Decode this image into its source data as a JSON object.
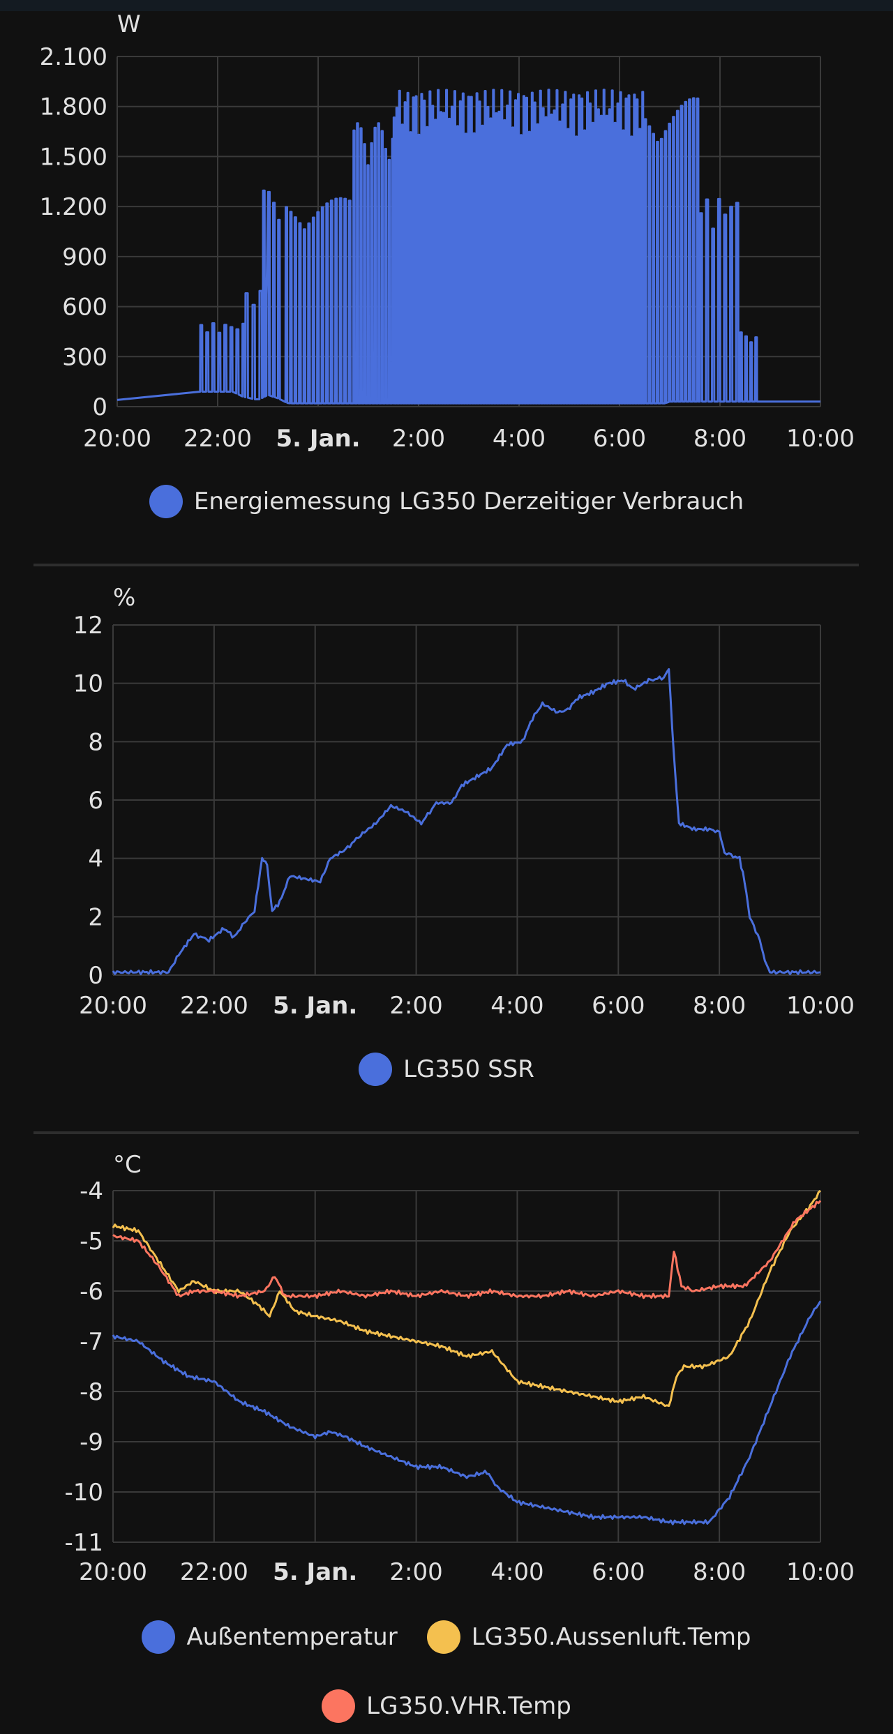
{
  "colors": {
    "blue": "#4a6fdc",
    "yellow": "#f4c04f",
    "red": "#fc7560",
    "grid": "#3a3a3a",
    "text": "#e1e1e1"
  },
  "chart_data": [
    {
      "type": "line",
      "unit": "W",
      "x_ticks": [
        "20:00",
        "22:00",
        "5. Jan.",
        "2:00",
        "4:00",
        "6:00",
        "8:00",
        "10:00"
      ],
      "x_range_hours": [
        20,
        34
      ],
      "ylim": [
        0,
        2100
      ],
      "y_ticks": [
        0,
        300,
        600,
        900,
        1200,
        1500,
        1800,
        2100
      ],
      "y_tick_labels": [
        "0",
        "300",
        "600",
        "900",
        "1.200",
        "1.500",
        "1.800",
        "2.100"
      ],
      "grid": true,
      "legend_position": "bottom",
      "series": [
        {
          "name": "Energiemessung LG350 Derzeitiger Verbrauch",
          "color": "#4a6fdc",
          "baseline_points": [
            [
              20,
              40
            ],
            [
              21.1,
              40
            ],
            [
              21.2,
              60
            ],
            [
              21.4,
              90
            ],
            [
              22.3,
              90
            ],
            [
              22.5,
              60
            ],
            [
              22.8,
              40
            ],
            [
              23.0,
              70
            ],
            [
              23.2,
              50
            ],
            [
              23.4,
              20
            ],
            [
              30.9,
              20
            ],
            [
              31.0,
              30
            ],
            [
              32.9,
              30
            ],
            [
              34,
              30
            ]
          ],
          "pulse_segments": [
            {
              "start": 21.65,
              "end": 22.55,
              "peak": 500,
              "period": 0.12
            },
            {
              "start": 22.55,
              "end": 23.05,
              "peak": 700,
              "period": 0.14
            },
            {
              "start": 22.9,
              "end": 23.25,
              "peak": 1300,
              "period": 0.1
            },
            {
              "start": 23.35,
              "end": 24.7,
              "peak": 1250,
              "period": 0.09
            },
            {
              "start": 24.7,
              "end": 25.5,
              "peak": 1700,
              "period": 0.07
            },
            {
              "start": 25.5,
              "end": 30.5,
              "peak": 1900,
              "period": 0.055
            },
            {
              "start": 30.5,
              "end": 31.6,
              "peak": 1850,
              "period": 0.08
            },
            {
              "start": 31.6,
              "end": 32.4,
              "peak": 1250,
              "period": 0.12
            },
            {
              "start": 32.4,
              "end": 32.8,
              "peak": 450,
              "period": 0.1
            }
          ]
        }
      ]
    },
    {
      "type": "line",
      "unit": "%",
      "x_ticks": [
        "20:00",
        "22:00",
        "5. Jan.",
        "2:00",
        "4:00",
        "6:00",
        "8:00",
        "10:00"
      ],
      "x_range_hours": [
        20,
        34
      ],
      "ylim": [
        0,
        12
      ],
      "y_ticks": [
        0,
        2,
        4,
        6,
        8,
        10,
        12
      ],
      "y_tick_labels": [
        "0",
        "2",
        "4",
        "6",
        "8",
        "10",
        "12"
      ],
      "grid": true,
      "legend_position": "bottom",
      "series": [
        {
          "name": "LG350 SSR",
          "color": "#4a6fdc",
          "points": [
            [
              20,
              0.1
            ],
            [
              21.1,
              0.1
            ],
            [
              21.3,
              0.7
            ],
            [
              21.6,
              1.4
            ],
            [
              21.9,
              1.2
            ],
            [
              22.2,
              1.6
            ],
            [
              22.4,
              1.3
            ],
            [
              22.6,
              1.8
            ],
            [
              22.8,
              2.2
            ],
            [
              22.95,
              4.0
            ],
            [
              23.05,
              3.8
            ],
            [
              23.15,
              2.2
            ],
            [
              23.3,
              2.5
            ],
            [
              23.5,
              3.4
            ],
            [
              23.8,
              3.3
            ],
            [
              24.1,
              3.2
            ],
            [
              24.3,
              4.0
            ],
            [
              24.6,
              4.3
            ],
            [
              24.9,
              4.8
            ],
            [
              25.2,
              5.2
            ],
            [
              25.5,
              5.8
            ],
            [
              25.8,
              5.6
            ],
            [
              26.1,
              5.2
            ],
            [
              26.4,
              5.9
            ],
            [
              26.7,
              5.9
            ],
            [
              26.9,
              6.5
            ],
            [
              27.2,
              6.8
            ],
            [
              27.5,
              7.1
            ],
            [
              27.8,
              7.9
            ],
            [
              28.1,
              8.0
            ],
            [
              28.3,
              8.8
            ],
            [
              28.5,
              9.3
            ],
            [
              28.8,
              9.0
            ],
            [
              29.0,
              9.1
            ],
            [
              29.2,
              9.5
            ],
            [
              29.5,
              9.7
            ],
            [
              29.8,
              10.0
            ],
            [
              30.1,
              10.1
            ],
            [
              30.3,
              9.8
            ],
            [
              30.6,
              10.1
            ],
            [
              30.9,
              10.2
            ],
            [
              31.0,
              10.5
            ],
            [
              31.1,
              7.5
            ],
            [
              31.2,
              5.2
            ],
            [
              31.5,
              5.0
            ],
            [
              31.8,
              5.0
            ],
            [
              32.0,
              4.9
            ],
            [
              32.1,
              4.2
            ],
            [
              32.4,
              4.0
            ],
            [
              32.5,
              3.2
            ],
            [
              32.6,
              2.0
            ],
            [
              32.8,
              1.2
            ],
            [
              32.9,
              0.5
            ],
            [
              33.0,
              0.1
            ],
            [
              34,
              0.1
            ]
          ]
        }
      ]
    },
    {
      "type": "line",
      "unit": "°C",
      "x_ticks": [
        "20:00",
        "22:00",
        "5. Jan.",
        "2:00",
        "4:00",
        "6:00",
        "8:00",
        "10:00"
      ],
      "x_range_hours": [
        20,
        34
      ],
      "ylim": [
        -11,
        -4
      ],
      "y_ticks": [
        -4,
        -5,
        -6,
        -7,
        -8,
        -9,
        -10,
        -11
      ],
      "y_tick_labels": [
        "-4",
        "-5",
        "-6",
        "-7",
        "-8",
        "-9",
        "-10",
        "-11"
      ],
      "grid": true,
      "legend_position": "bottom",
      "series": [
        {
          "name": "Außentemperatur",
          "color": "#4a6fdc",
          "points": [
            [
              20,
              -6.9
            ],
            [
              20.5,
              -7.0
            ],
            [
              21,
              -7.4
            ],
            [
              21.5,
              -7.7
            ],
            [
              22,
              -7.8
            ],
            [
              22.5,
              -8.2
            ],
            [
              23,
              -8.4
            ],
            [
              23.5,
              -8.7
            ],
            [
              24,
              -8.9
            ],
            [
              24.3,
              -8.8
            ],
            [
              24.6,
              -8.9
            ],
            [
              25,
              -9.1
            ],
            [
              25.5,
              -9.3
            ],
            [
              26,
              -9.5
            ],
            [
              26.5,
              -9.5
            ],
            [
              27,
              -9.7
            ],
            [
              27.4,
              -9.6
            ],
            [
              27.6,
              -9.9
            ],
            [
              28,
              -10.2
            ],
            [
              28.5,
              -10.3
            ],
            [
              29,
              -10.4
            ],
            [
              29.5,
              -10.5
            ],
            [
              30,
              -10.5
            ],
            [
              30.5,
              -10.5
            ],
            [
              31,
              -10.6
            ],
            [
              31.5,
              -10.6
            ],
            [
              31.8,
              -10.6
            ],
            [
              32.2,
              -10.1
            ],
            [
              32.6,
              -9.3
            ],
            [
              33,
              -8.3
            ],
            [
              33.4,
              -7.3
            ],
            [
              33.8,
              -6.5
            ],
            [
              34,
              -6.2
            ]
          ]
        },
        {
          "name": "LG350.Aussenluft.Temp",
          "color": "#f4c04f",
          "points": [
            [
              20,
              -4.7
            ],
            [
              20.5,
              -4.8
            ],
            [
              20.9,
              -5.4
            ],
            [
              21.3,
              -6.0
            ],
            [
              21.6,
              -5.8
            ],
            [
              22,
              -6.0
            ],
            [
              22.5,
              -6.0
            ],
            [
              22.9,
              -6.3
            ],
            [
              23.1,
              -6.5
            ],
            [
              23.3,
              -6.0
            ],
            [
              23.6,
              -6.4
            ],
            [
              24,
              -6.5
            ],
            [
              24.5,
              -6.6
            ],
            [
              25,
              -6.8
            ],
            [
              25.5,
              -6.9
            ],
            [
              26,
              -7.0
            ],
            [
              26.5,
              -7.1
            ],
            [
              27,
              -7.3
            ],
            [
              27.5,
              -7.2
            ],
            [
              28,
              -7.8
            ],
            [
              28.5,
              -7.9
            ],
            [
              29,
              -8.0
            ],
            [
              29.5,
              -8.1
            ],
            [
              30,
              -8.2
            ],
            [
              30.5,
              -8.1
            ],
            [
              31,
              -8.3
            ],
            [
              31.15,
              -7.7
            ],
            [
              31.3,
              -7.5
            ],
            [
              31.7,
              -7.5
            ],
            [
              32.2,
              -7.3
            ],
            [
              32.6,
              -6.6
            ],
            [
              33,
              -5.6
            ],
            [
              33.4,
              -4.8
            ],
            [
              33.8,
              -4.3
            ],
            [
              34,
              -4.0
            ]
          ]
        },
        {
          "name": "LG350.VHR.Temp",
          "color": "#fc7560",
          "points": [
            [
              20,
              -4.9
            ],
            [
              20.5,
              -5.0
            ],
            [
              20.9,
              -5.5
            ],
            [
              21.3,
              -6.1
            ],
            [
              21.6,
              -6.0
            ],
            [
              22,
              -6.0
            ],
            [
              22.5,
              -6.1
            ],
            [
              23,
              -6.0
            ],
            [
              23.2,
              -5.7
            ],
            [
              23.4,
              -6.1
            ],
            [
              24,
              -6.1
            ],
            [
              24.5,
              -6.0
            ],
            [
              25,
              -6.1
            ],
            [
              25.5,
              -6.0
            ],
            [
              26,
              -6.1
            ],
            [
              26.5,
              -6.0
            ],
            [
              27,
              -6.1
            ],
            [
              27.5,
              -6.0
            ],
            [
              28,
              -6.1
            ],
            [
              28.5,
              -6.1
            ],
            [
              29,
              -6.0
            ],
            [
              29.5,
              -6.1
            ],
            [
              30,
              -6.0
            ],
            [
              30.5,
              -6.1
            ],
            [
              31,
              -6.1
            ],
            [
              31.1,
              -5.2
            ],
            [
              31.25,
              -5.9
            ],
            [
              31.5,
              -6.0
            ],
            [
              32,
              -5.9
            ],
            [
              32.5,
              -5.9
            ],
            [
              33,
              -5.4
            ],
            [
              33.5,
              -4.6
            ],
            [
              34,
              -4.2
            ]
          ]
        }
      ]
    }
  ]
}
